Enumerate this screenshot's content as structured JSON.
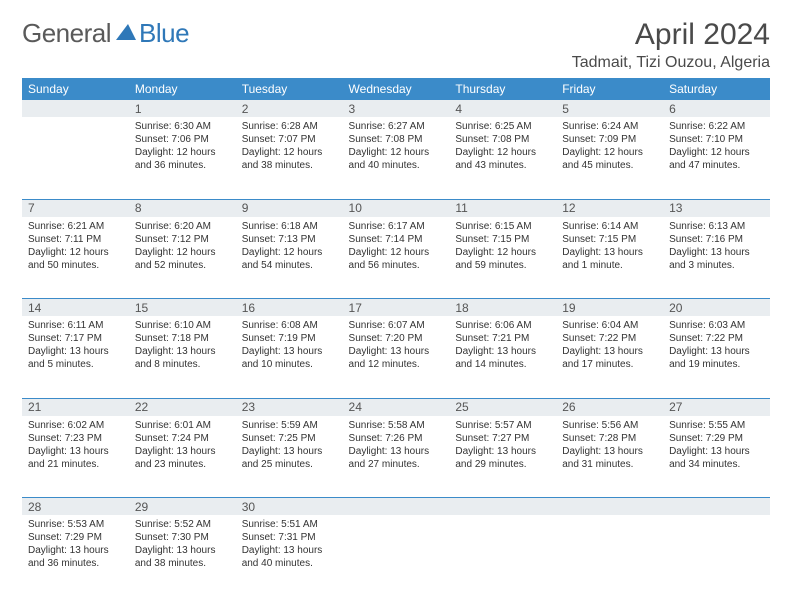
{
  "logo": {
    "text1": "General",
    "text2": "Blue"
  },
  "title": "April 2024",
  "location": "Tadmait, Tizi Ouzou, Algeria",
  "colors": {
    "header_bg": "#3b8bc9",
    "header_fg": "#ffffff",
    "dateline_bg": "#e9edf0",
    "sep": "#3b8bc9",
    "text": "#333333",
    "logo_blue": "#2f78b8"
  },
  "weekdays": [
    "Sunday",
    "Monday",
    "Tuesday",
    "Wednesday",
    "Thursday",
    "Friday",
    "Saturday"
  ],
  "weeks": [
    [
      {},
      {
        "n": "1",
        "sr": "Sunrise: 6:30 AM",
        "ss": "Sunset: 7:06 PM",
        "d1": "Daylight: 12 hours",
        "d2": "and 36 minutes."
      },
      {
        "n": "2",
        "sr": "Sunrise: 6:28 AM",
        "ss": "Sunset: 7:07 PM",
        "d1": "Daylight: 12 hours",
        "d2": "and 38 minutes."
      },
      {
        "n": "3",
        "sr": "Sunrise: 6:27 AM",
        "ss": "Sunset: 7:08 PM",
        "d1": "Daylight: 12 hours",
        "d2": "and 40 minutes."
      },
      {
        "n": "4",
        "sr": "Sunrise: 6:25 AM",
        "ss": "Sunset: 7:08 PM",
        "d1": "Daylight: 12 hours",
        "d2": "and 43 minutes."
      },
      {
        "n": "5",
        "sr": "Sunrise: 6:24 AM",
        "ss": "Sunset: 7:09 PM",
        "d1": "Daylight: 12 hours",
        "d2": "and 45 minutes."
      },
      {
        "n": "6",
        "sr": "Sunrise: 6:22 AM",
        "ss": "Sunset: 7:10 PM",
        "d1": "Daylight: 12 hours",
        "d2": "and 47 minutes."
      }
    ],
    [
      {
        "n": "7",
        "sr": "Sunrise: 6:21 AM",
        "ss": "Sunset: 7:11 PM",
        "d1": "Daylight: 12 hours",
        "d2": "and 50 minutes."
      },
      {
        "n": "8",
        "sr": "Sunrise: 6:20 AM",
        "ss": "Sunset: 7:12 PM",
        "d1": "Daylight: 12 hours",
        "d2": "and 52 minutes."
      },
      {
        "n": "9",
        "sr": "Sunrise: 6:18 AM",
        "ss": "Sunset: 7:13 PM",
        "d1": "Daylight: 12 hours",
        "d2": "and 54 minutes."
      },
      {
        "n": "10",
        "sr": "Sunrise: 6:17 AM",
        "ss": "Sunset: 7:14 PM",
        "d1": "Daylight: 12 hours",
        "d2": "and 56 minutes."
      },
      {
        "n": "11",
        "sr": "Sunrise: 6:15 AM",
        "ss": "Sunset: 7:15 PM",
        "d1": "Daylight: 12 hours",
        "d2": "and 59 minutes."
      },
      {
        "n": "12",
        "sr": "Sunrise: 6:14 AM",
        "ss": "Sunset: 7:15 PM",
        "d1": "Daylight: 13 hours",
        "d2": "and 1 minute."
      },
      {
        "n": "13",
        "sr": "Sunrise: 6:13 AM",
        "ss": "Sunset: 7:16 PM",
        "d1": "Daylight: 13 hours",
        "d2": "and 3 minutes."
      }
    ],
    [
      {
        "n": "14",
        "sr": "Sunrise: 6:11 AM",
        "ss": "Sunset: 7:17 PM",
        "d1": "Daylight: 13 hours",
        "d2": "and 5 minutes."
      },
      {
        "n": "15",
        "sr": "Sunrise: 6:10 AM",
        "ss": "Sunset: 7:18 PM",
        "d1": "Daylight: 13 hours",
        "d2": "and 8 minutes."
      },
      {
        "n": "16",
        "sr": "Sunrise: 6:08 AM",
        "ss": "Sunset: 7:19 PM",
        "d1": "Daylight: 13 hours",
        "d2": "and 10 minutes."
      },
      {
        "n": "17",
        "sr": "Sunrise: 6:07 AM",
        "ss": "Sunset: 7:20 PM",
        "d1": "Daylight: 13 hours",
        "d2": "and 12 minutes."
      },
      {
        "n": "18",
        "sr": "Sunrise: 6:06 AM",
        "ss": "Sunset: 7:21 PM",
        "d1": "Daylight: 13 hours",
        "d2": "and 14 minutes."
      },
      {
        "n": "19",
        "sr": "Sunrise: 6:04 AM",
        "ss": "Sunset: 7:22 PM",
        "d1": "Daylight: 13 hours",
        "d2": "and 17 minutes."
      },
      {
        "n": "20",
        "sr": "Sunrise: 6:03 AM",
        "ss": "Sunset: 7:22 PM",
        "d1": "Daylight: 13 hours",
        "d2": "and 19 minutes."
      }
    ],
    [
      {
        "n": "21",
        "sr": "Sunrise: 6:02 AM",
        "ss": "Sunset: 7:23 PM",
        "d1": "Daylight: 13 hours",
        "d2": "and 21 minutes."
      },
      {
        "n": "22",
        "sr": "Sunrise: 6:01 AM",
        "ss": "Sunset: 7:24 PM",
        "d1": "Daylight: 13 hours",
        "d2": "and 23 minutes."
      },
      {
        "n": "23",
        "sr": "Sunrise: 5:59 AM",
        "ss": "Sunset: 7:25 PM",
        "d1": "Daylight: 13 hours",
        "d2": "and 25 minutes."
      },
      {
        "n": "24",
        "sr": "Sunrise: 5:58 AM",
        "ss": "Sunset: 7:26 PM",
        "d1": "Daylight: 13 hours",
        "d2": "and 27 minutes."
      },
      {
        "n": "25",
        "sr": "Sunrise: 5:57 AM",
        "ss": "Sunset: 7:27 PM",
        "d1": "Daylight: 13 hours",
        "d2": "and 29 minutes."
      },
      {
        "n": "26",
        "sr": "Sunrise: 5:56 AM",
        "ss": "Sunset: 7:28 PM",
        "d1": "Daylight: 13 hours",
        "d2": "and 31 minutes."
      },
      {
        "n": "27",
        "sr": "Sunrise: 5:55 AM",
        "ss": "Sunset: 7:29 PM",
        "d1": "Daylight: 13 hours",
        "d2": "and 34 minutes."
      }
    ],
    [
      {
        "n": "28",
        "sr": "Sunrise: 5:53 AM",
        "ss": "Sunset: 7:29 PM",
        "d1": "Daylight: 13 hours",
        "d2": "and 36 minutes."
      },
      {
        "n": "29",
        "sr": "Sunrise: 5:52 AM",
        "ss": "Sunset: 7:30 PM",
        "d1": "Daylight: 13 hours",
        "d2": "and 38 minutes."
      },
      {
        "n": "30",
        "sr": "Sunrise: 5:51 AM",
        "ss": "Sunset: 7:31 PM",
        "d1": "Daylight: 13 hours",
        "d2": "and 40 minutes."
      },
      {},
      {},
      {},
      {}
    ]
  ]
}
